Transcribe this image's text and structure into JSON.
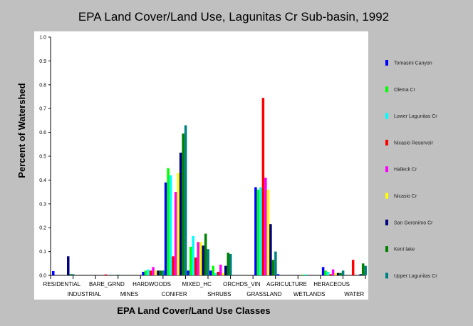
{
  "chart_data": {
    "type": "bar",
    "title": "EPA Land Cover/Land Use, Lagunitas Cr Sub-basin, 1992",
    "xlabel": "EPA Land Cover/Land Use Classes",
    "ylabel": "Percent of Watershed",
    "ylim": [
      0,
      1.0
    ],
    "yticks": [
      "0.0",
      "0.1",
      "0.2",
      "0.3",
      "0.4",
      "0.5",
      "0.6",
      "0.7",
      "0.8",
      "0.9",
      "1.0"
    ],
    "grid": false,
    "legend_position": "right",
    "categories": [
      "RESIDENTIAL",
      "INDUSTRIAL",
      "BARE_GRND",
      "MINES",
      "HARDWOODS",
      "CONIFER",
      "MIXED_HC",
      "SHRUBS",
      "ORCHDS_VIN",
      "GRASSLAND",
      "AGRICULTURE",
      "WETLANDS",
      "HERACEOUS",
      "WATER"
    ],
    "series": [
      {
        "name": "Tomasini Canyon",
        "color": "#0000ff",
        "values": [
          0.018,
          0.0,
          0.0,
          0.0,
          0.015,
          0.39,
          0.02,
          0.02,
          0.0,
          0.37,
          0.005,
          0.0,
          0.035,
          0.0
        ]
      },
      {
        "name": "Olema Cr",
        "color": "#00ff00",
        "values": [
          0.0,
          0.0,
          0.0,
          0.0,
          0.02,
          0.45,
          0.12,
          0.04,
          0.0,
          0.36,
          0.0,
          0.003,
          0.02,
          0.0
        ]
      },
      {
        "name": "Lower Lagunitas Cr",
        "color": "#00ffff",
        "values": [
          0.0,
          0.0,
          0.0,
          0.0,
          0.025,
          0.42,
          0.165,
          0.01,
          0.0,
          0.37,
          0.0,
          0.004,
          0.015,
          0.0
        ]
      },
      {
        "name": "Nicasio Reservoir",
        "color": "#ff0000",
        "values": [
          0.0,
          0.0,
          0.004,
          0.0,
          0.02,
          0.08,
          0.075,
          0.015,
          0.0,
          0.745,
          0.0,
          0.0,
          0.005,
          0.065
        ]
      },
      {
        "name": "Halleck Cr",
        "color": "#ff00ff",
        "values": [
          0.0,
          0.0,
          0.0,
          0.0,
          0.035,
          0.35,
          0.14,
          0.045,
          0.0,
          0.41,
          0.0,
          0.0,
          0.025,
          0.0
        ]
      },
      {
        "name": "Nicasio Cr",
        "color": "#ffff00",
        "values": [
          0.0,
          0.0,
          0.0,
          0.0,
          0.02,
          0.43,
          0.14,
          0.01,
          0.0,
          0.36,
          0.0,
          0.0,
          0.01,
          0.0
        ]
      },
      {
        "name": "San Geronimo Cr",
        "color": "#000080",
        "values": [
          0.08,
          0.0,
          0.0,
          0.0,
          0.02,
          0.515,
          0.125,
          0.04,
          0.0,
          0.215,
          0.0,
          0.0,
          0.01,
          0.005
        ]
      },
      {
        "name": "Kent lake",
        "color": "#008000",
        "values": [
          0.005,
          0.0,
          0.0,
          0.0,
          0.02,
          0.595,
          0.175,
          0.095,
          0.0,
          0.065,
          0.0,
          0.002,
          0.01,
          0.05
        ]
      },
      {
        "name": "Upper Lagunitas Cr",
        "color": "#008080",
        "values": [
          0.005,
          0.0,
          0.003,
          0.0,
          0.02,
          0.63,
          0.11,
          0.09,
          0.0,
          0.1,
          0.0,
          0.0,
          0.02,
          0.04
        ]
      }
    ]
  }
}
